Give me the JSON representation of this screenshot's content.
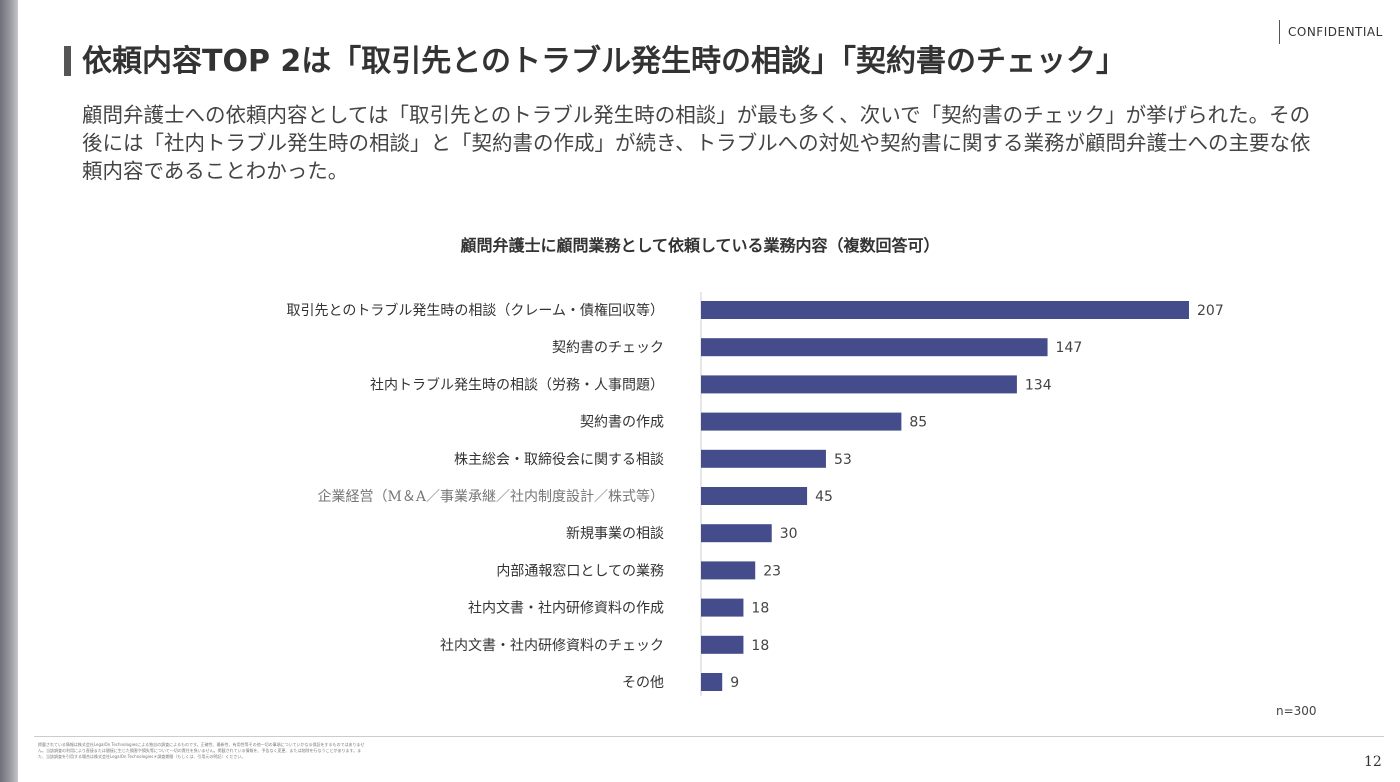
{
  "header": {
    "confidential": "CONFIDENTIAL",
    "title": "依頼内容TOP 2は「取引先とのトラブル発生時の相談」「契約書のチェック」",
    "description": "顧問弁護士への依頼内容としては「取引先とのトラブル発生時の相談」が最も多く、次いで「契約書のチェック」が挙げられた。その後には「社内トラブル発生時の相談」と「契約書の作成」が続き、トラブルへの対処や契約書に関する業務が顧問弁護士への主要な依頼内容であることわかった。"
  },
  "chart_data": {
    "type": "bar",
    "orientation": "horizontal",
    "title": "顧問弁護士に顧問業務として依頼している業務内容（複数回答可）",
    "categories": [
      "取引先とのトラブル発生時の相談（クレーム・債権回収等）",
      "契約書のチェック",
      "社内トラブル発生時の相談（労務・人事問題）",
      "契約書の作成",
      "株主総会・取締役会に関する相談",
      "企業経営（M＆A／事業承継／社内制度設計／株式等）",
      "新規事業の相談",
      "内部通報窓口としての業務",
      "社内文書・社内研修資料の作成",
      "社内文書・社内研修資料のチェック",
      "その他"
    ],
    "values": [
      207,
      147,
      134,
      85,
      53,
      45,
      30,
      23,
      18,
      18,
      9
    ],
    "bar_color": "#454c8c",
    "grid": false,
    "sample_note": "n=300"
  },
  "footer": {
    "footnote": "掲載されている情報は株式会社LegalOn Technologiesによる独自の調査によるものです。正確性、最新性、有用性等その他一切の事項についていかなる保証をするものではありません。当該調査の利用により直接または間接に生じた損害や損失等について一切の責任を負いません。掲載されている情報を、予告なく変更、または削除を行なうことがあります。また、当該調査を引用する場合は株式会社LegalOn Technologies＊調査期間（もしくは、引用元の明記）ください。",
    "page_number": "12"
  }
}
